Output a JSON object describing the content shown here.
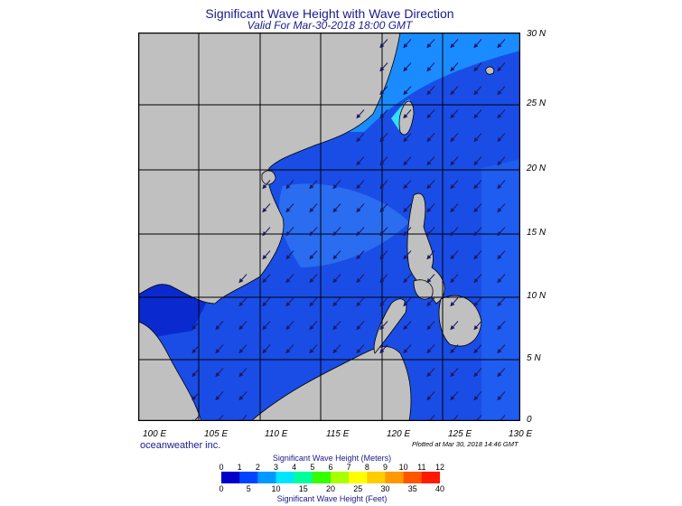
{
  "title": "Significant Wave Height with Wave Direction",
  "subtitle": "Valid For Mar-30-2018 18:00 GMT",
  "credit": "oceanweather inc.",
  "plotted": "Plotted at Mar 30, 2018 14:46 GMT",
  "map": {
    "region": "South China Sea / Philippines",
    "lon_range": [
      99,
      130
    ],
    "lat_range": [
      0,
      30
    ],
    "grid": true,
    "lat_labels": [
      "30 N",
      "25 N",
      "20 N",
      "15 N",
      "10 N",
      "5 N",
      "0"
    ],
    "lon_labels": [
      "100 E",
      "105 E",
      "110 E",
      "115 E",
      "120 E",
      "125 E",
      "130 E"
    ],
    "land_color": "#c0c0c0",
    "coast_color": "#000000",
    "arrow_color": "#1a1a66"
  },
  "colorbar": {
    "meters_title": "Significant Wave Height (Meters)",
    "feet_title": "Significant Wave Height (Feet)",
    "meters_ticks": [
      "0",
      "1",
      "2",
      "3",
      "4",
      "5",
      "6",
      "7",
      "8",
      "9",
      "10",
      "11",
      "12"
    ],
    "feet_ticks": [
      "0",
      "5",
      "10",
      "15",
      "20",
      "25",
      "30",
      "35",
      "40"
    ],
    "colors": [
      "#0000c8",
      "#0044ff",
      "#0099ff",
      "#00e6ff",
      "#00ff99",
      "#33ff00",
      "#aaff00",
      "#ffff00",
      "#ffcc00",
      "#ff9900",
      "#ff5500",
      "#ff1a00"
    ]
  }
}
